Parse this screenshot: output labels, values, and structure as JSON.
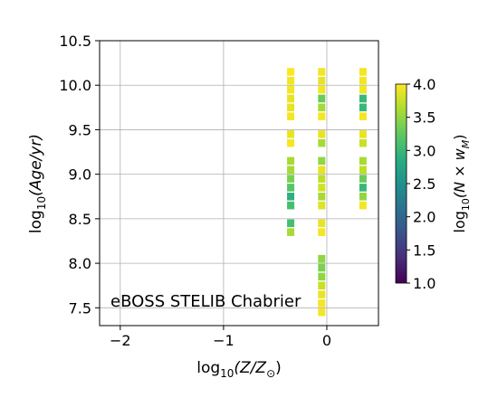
{
  "chart_data": {
    "type": "heatmap",
    "title": "",
    "xlabel_pre": "log",
    "xlabel_sub": "10",
    "xlabel_post": "(Z/Z",
    "xlabel_sub2": "⊙",
    "xlabel_close": ")",
    "ylabel_pre": "log",
    "ylabel_sub": "10",
    "ylabel_post": "(Age/yr)",
    "annotation": "eBOSS STELIB Chabrier",
    "xlim": [
      -2.2,
      0.5
    ],
    "ylim": [
      7.3,
      10.5
    ],
    "xticks": [
      -2,
      -1,
      0
    ],
    "xtick_labels": [
      "−2",
      "−1",
      "0"
    ],
    "yticks": [
      7.5,
      8.0,
      8.5,
      9.0,
      9.5,
      10.0,
      10.5
    ],
    "ytick_labels": [
      "7.5",
      "8.0",
      "8.5",
      "9.0",
      "9.5",
      "10.0",
      "10.5"
    ],
    "grid": true,
    "colorbar": {
      "label_pre": "log",
      "label_sub": "10",
      "label_post": "(N × w",
      "label_sub2": "M",
      "label_close": ")",
      "range": [
        1.0,
        4.0
      ],
      "ticks": [
        1.0,
        1.5,
        2.0,
        2.5,
        3.0,
        3.5,
        4.0
      ],
      "tick_labels": [
        "1.0",
        "1.5",
        "2.0",
        "2.5",
        "3.0",
        "3.5",
        "4.0"
      ],
      "colormap": "viridis"
    },
    "cell_size": {
      "dx": 0.07,
      "dy": 0.087
    },
    "columns": [
      {
        "x": -0.35,
        "points": [
          {
            "age": 10.15,
            "c": 4.0
          },
          {
            "age": 10.05,
            "c": 3.95
          },
          {
            "age": 9.95,
            "c": 3.95
          },
          {
            "age": 9.85,
            "c": 3.9
          },
          {
            "age": 9.75,
            "c": 3.9
          },
          {
            "age": 9.65,
            "c": 3.95
          },
          {
            "age": 9.45,
            "c": 3.9
          },
          {
            "age": 9.35,
            "c": 3.95
          },
          {
            "age": 9.15,
            "c": 3.6
          },
          {
            "age": 9.05,
            "c": 3.6
          },
          {
            "age": 8.95,
            "c": 3.4
          },
          {
            "age": 8.85,
            "c": 3.2
          },
          {
            "age": 8.75,
            "c": 2.9
          },
          {
            "age": 8.65,
            "c": 3.1
          },
          {
            "age": 8.45,
            "c": 3.1
          },
          {
            "age": 8.35,
            "c": 3.6
          }
        ]
      },
      {
        "x": -0.05,
        "points": [
          {
            "age": 10.15,
            "c": 3.95
          },
          {
            "age": 10.05,
            "c": 3.9
          },
          {
            "age": 9.95,
            "c": 3.95
          },
          {
            "age": 9.85,
            "c": 3.3
          },
          {
            "age": 9.75,
            "c": 3.6
          },
          {
            "age": 9.65,
            "c": 3.95
          },
          {
            "age": 9.45,
            "c": 3.9
          },
          {
            "age": 9.35,
            "c": 3.6
          },
          {
            "age": 9.15,
            "c": 3.5
          },
          {
            "age": 9.05,
            "c": 3.9
          },
          {
            "age": 8.95,
            "c": 3.7
          },
          {
            "age": 8.85,
            "c": 3.8
          },
          {
            "age": 8.75,
            "c": 3.6
          },
          {
            "age": 8.65,
            "c": 3.85
          },
          {
            "age": 8.45,
            "c": 3.9
          },
          {
            "age": 8.35,
            "c": 3.95
          },
          {
            "age": 8.05,
            "c": 3.5
          },
          {
            "age": 7.95,
            "c": 3.4
          },
          {
            "age": 7.85,
            "c": 3.5
          },
          {
            "age": 7.75,
            "c": 3.75
          },
          {
            "age": 7.65,
            "c": 3.9
          },
          {
            "age": 7.55,
            "c": 3.95
          },
          {
            "age": 7.45,
            "c": 3.95
          }
        ]
      },
      {
        "x": 0.35,
        "points": [
          {
            "age": 10.15,
            "c": 3.95
          },
          {
            "age": 10.05,
            "c": 3.95
          },
          {
            "age": 9.95,
            "c": 3.95
          },
          {
            "age": 9.85,
            "c": 3.0
          },
          {
            "age": 9.75,
            "c": 3.0
          },
          {
            "age": 9.65,
            "c": 3.95
          },
          {
            "age": 9.45,
            "c": 3.9
          },
          {
            "age": 9.35,
            "c": 3.75
          },
          {
            "age": 9.15,
            "c": 3.6
          },
          {
            "age": 9.05,
            "c": 3.7
          },
          {
            "age": 8.95,
            "c": 3.3
          },
          {
            "age": 8.85,
            "c": 3.0
          },
          {
            "age": 8.75,
            "c": 3.5
          },
          {
            "age": 8.65,
            "c": 3.95
          }
        ]
      }
    ]
  }
}
